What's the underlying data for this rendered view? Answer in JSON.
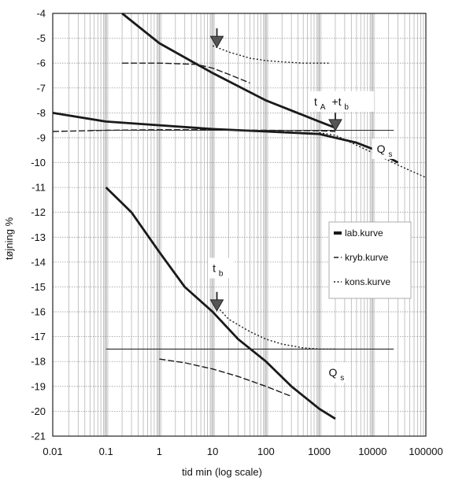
{
  "chart_data": {
    "type": "line",
    "xlabel": "tid min (log scale)",
    "ylabel": "tøjning %",
    "xscale": "log",
    "xlim": [
      0.01,
      100000
    ],
    "ylim": [
      -21,
      -4
    ],
    "x_tick_labels": [
      "0.01",
      "0.1",
      "1",
      "10",
      "100",
      "1000",
      "10000",
      "100000"
    ],
    "y_tick_labels": [
      "-4",
      "-5",
      "-6",
      "-7",
      "-8",
      "-9",
      "-10",
      "-11",
      "-12",
      "-13",
      "-14",
      "-15",
      "-16",
      "-17",
      "-18",
      "-19",
      "-20",
      "-21"
    ],
    "grid": true,
    "legend_position": "right",
    "legend": [
      {
        "label": "lab.kurve",
        "style": "solid-thick"
      },
      {
        "label": "kryb.kurve",
        "style": "dashed"
      },
      {
        "label": "kons.kurve",
        "style": "dotted"
      }
    ],
    "series": [
      {
        "name": "lab.kurve",
        "style": "solid-thick",
        "x": [
          0.2,
          1,
          10,
          100,
          1000,
          2000
        ],
        "y": [
          -4.0,
          -5.2,
          -6.4,
          -7.5,
          -8.35,
          -8.6
        ]
      },
      {
        "name": "kryb.kurve",
        "style": "dashed",
        "x": [
          0.2,
          1,
          5,
          10,
          20,
          50
        ],
        "y": [
          -6.0,
          -6.0,
          -6.05,
          -6.2,
          -6.45,
          -6.8
        ]
      },
      {
        "name": "kons.kurve",
        "style": "dotted",
        "x": [
          10,
          20,
          50,
          100,
          200,
          500,
          1500
        ],
        "y": [
          -5.3,
          -5.55,
          -5.8,
          -5.9,
          -5.95,
          -6.0,
          -6.0
        ]
      },
      {
        "name": "lab.kurve",
        "style": "solid-thick",
        "x": [
          0.01,
          0.1,
          1,
          10,
          100,
          1000,
          5000,
          10000,
          30000
        ],
        "y": [
          -8.0,
          -8.35,
          -8.5,
          -8.65,
          -8.75,
          -8.85,
          -9.2,
          -9.45,
          -10.0
        ]
      },
      {
        "name": "kryb.kurve",
        "style": "dashed",
        "x": [
          0.01,
          0.1,
          1,
          10,
          100,
          1000,
          2000
        ],
        "y": [
          -8.75,
          -8.7,
          -8.68,
          -8.68,
          -8.7,
          -8.72,
          -8.75
        ]
      },
      {
        "name": "kons.kurve",
        "style": "dotted",
        "x": [
          1000,
          2000,
          5000,
          10000,
          30000,
          100000
        ],
        "y": [
          -8.8,
          -8.9,
          -9.3,
          -9.6,
          -10.1,
          -10.6
        ]
      },
      {
        "name": "lab.kurve",
        "style": "solid-thick",
        "x": [
          0.1,
          0.3,
          1,
          3,
          10,
          30,
          100,
          300,
          1000,
          2000
        ],
        "y": [
          -11.0,
          -12.0,
          -13.6,
          -15.0,
          -16.0,
          -17.1,
          -18.0,
          -19.0,
          -19.9,
          -20.3
        ]
      },
      {
        "name": "kryb.kurve",
        "style": "dashed",
        "x": [
          1,
          3,
          10,
          30,
          100,
          300
        ],
        "y": [
          -17.9,
          -18.05,
          -18.3,
          -18.6,
          -19.0,
          -19.4
        ]
      },
      {
        "name": "kons.kurve",
        "style": "dotted",
        "x": [
          10,
          20,
          50,
          100,
          200,
          500,
          1000,
          2000
        ],
        "y": [
          -15.6,
          -16.3,
          -16.8,
          -17.1,
          -17.3,
          -17.45,
          -17.5,
          -17.5
        ]
      },
      {
        "name": "",
        "style": "solid-thin",
        "x": [
          0.1,
          25000
        ],
        "y": [
          -17.5,
          -17.5
        ]
      },
      {
        "name": "",
        "style": "solid-thin",
        "x": [
          0.05,
          25000
        ],
        "y": [
          -8.7,
          -8.7
        ]
      }
    ],
    "annotations": [
      {
        "text": "t",
        "sub": "A",
        "after": "+t",
        "after_sub": "b",
        "x": 800,
        "y": -7.7
      },
      {
        "text": "Q",
        "sub": "s",
        "x": 12000,
        "y": -9.6
      },
      {
        "text": "t",
        "sub": "b",
        "x": 10,
        "y": -14.4
      },
      {
        "text": "Q",
        "sub": "s",
        "x": 1500,
        "y": -18.6
      }
    ],
    "arrows": [
      {
        "x": 12,
        "y_from": -4.6,
        "y_to": -5.3
      },
      {
        "x": 2000,
        "y_from": -8.0,
        "y_to": -8.65
      },
      {
        "x": 12,
        "y_from": -15.2,
        "y_to": -15.9
      }
    ]
  }
}
